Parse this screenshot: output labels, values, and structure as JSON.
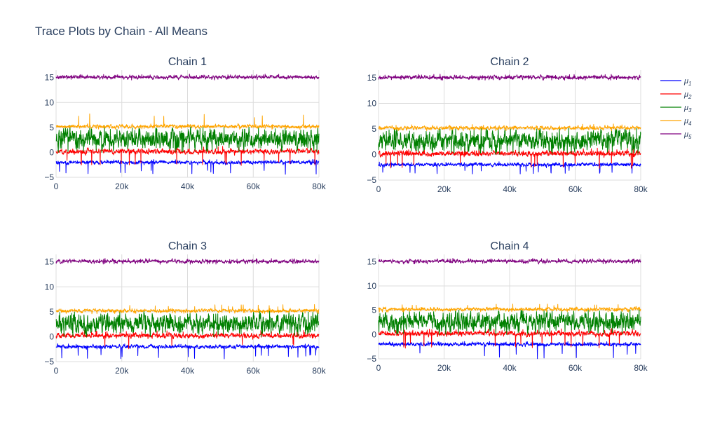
{
  "title": "Trace Plots by Chain - All Means",
  "colors": {
    "grid": "#dcdcdc",
    "text": "#2a3f5f"
  },
  "legend": {
    "placement": "top-right",
    "entries": [
      {
        "base": "μ",
        "sub": "1",
        "color": "#0000ff"
      },
      {
        "base": "μ",
        "sub": "2",
        "color": "#ff0000"
      },
      {
        "base": "μ",
        "sub": "3",
        "color": "#008000"
      },
      {
        "base": "μ",
        "sub": "4",
        "color": "#ffa500"
      },
      {
        "base": "μ",
        "sub": "5",
        "color": "#800080"
      }
    ]
  },
  "chart_data": [
    {
      "type": "line",
      "title": "Chain 1",
      "xlim": [
        0,
        80000
      ],
      "ylim": [
        -5,
        16.5
      ],
      "xticks": [
        0,
        20000,
        40000,
        60000,
        80000
      ],
      "xtick_labels": [
        "0",
        "20k",
        "40k",
        "60k",
        "80k"
      ],
      "yticks": [
        -5,
        0,
        5,
        10,
        15
      ],
      "ytick_labels": [
        "−5",
        "0",
        "5",
        "10",
        "15"
      ],
      "grid": true,
      "series": [
        {
          "name": "μ1",
          "color": "#0000ff",
          "mean": -2.0,
          "noise": 0.25,
          "min": -4.5,
          "max": -1.4
        },
        {
          "name": "μ2",
          "color": "#ff0000",
          "mean": 0.2,
          "noise": 0.35,
          "min": -2.8,
          "max": 1.3
        },
        {
          "name": "μ3",
          "color": "#008000",
          "mean": 2.7,
          "noise": 1.3,
          "min": 0.0,
          "max": 5.4
        },
        {
          "name": "μ4",
          "color": "#ffa500",
          "mean": 5.2,
          "noise": 0.25,
          "min": 4.6,
          "max": 7.8
        },
        {
          "name": "μ5",
          "color": "#800080",
          "mean": 15.1,
          "noise": 0.25,
          "min": 14.5,
          "max": 15.7
        }
      ]
    },
    {
      "type": "line",
      "title": "Chain 2",
      "xlim": [
        0,
        80000
      ],
      "ylim": [
        -5,
        16.5
      ],
      "xticks": [
        0,
        20000,
        40000,
        60000,
        80000
      ],
      "xtick_labels": [
        "0",
        "20k",
        "40k",
        "60k",
        "80k"
      ],
      "yticks": [
        -5,
        0,
        5,
        10,
        15
      ],
      "ytick_labels": [
        "−5",
        "0",
        "5",
        "10",
        "15"
      ],
      "grid": true,
      "series": [
        {
          "name": "μ1",
          "color": "#0000ff",
          "mean": -2.0,
          "noise": 0.25,
          "min": -3.8,
          "max": -1.4
        },
        {
          "name": "μ2",
          "color": "#ff0000",
          "mean": 0.2,
          "noise": 0.35,
          "min": -2.8,
          "max": 1.3
        },
        {
          "name": "μ3",
          "color": "#008000",
          "mean": 2.7,
          "noise": 1.3,
          "min": 0.0,
          "max": 5.2
        },
        {
          "name": "μ4",
          "color": "#ffa500",
          "mean": 5.2,
          "noise": 0.25,
          "min": 4.6,
          "max": 6.0
        },
        {
          "name": "μ5",
          "color": "#800080",
          "mean": 15.1,
          "noise": 0.25,
          "min": 14.5,
          "max": 15.7
        }
      ]
    },
    {
      "type": "line",
      "title": "Chain 3",
      "xlim": [
        0,
        80000
      ],
      "ylim": [
        -5,
        16.5
      ],
      "xticks": [
        0,
        20000,
        40000,
        60000,
        80000
      ],
      "xtick_labels": [
        "0",
        "20k",
        "40k",
        "60k",
        "80k"
      ],
      "yticks": [
        -5,
        0,
        5,
        10,
        15
      ],
      "ytick_labels": [
        "−5",
        "0",
        "5",
        "10",
        "15"
      ],
      "grid": true,
      "series": [
        {
          "name": "μ1",
          "color": "#0000ff",
          "mean": -2.0,
          "noise": 0.25,
          "min": -4.5,
          "max": -1.4
        },
        {
          "name": "μ2",
          "color": "#ff0000",
          "mean": 0.2,
          "noise": 0.35,
          "min": -2.6,
          "max": 1.3
        },
        {
          "name": "μ3",
          "color": "#008000",
          "mean": 2.7,
          "noise": 1.3,
          "min": 0.0,
          "max": 5.2
        },
        {
          "name": "μ4",
          "color": "#ffa500",
          "mean": 5.2,
          "noise": 0.25,
          "min": 4.6,
          "max": 6.5
        },
        {
          "name": "μ5",
          "color": "#800080",
          "mean": 15.1,
          "noise": 0.25,
          "min": 14.5,
          "max": 15.7
        }
      ]
    },
    {
      "type": "line",
      "title": "Chain 4",
      "xlim": [
        0,
        80000
      ],
      "ylim": [
        -5,
        16.5
      ],
      "xticks": [
        0,
        20000,
        40000,
        60000,
        80000
      ],
      "xtick_labels": [
        "0",
        "20k",
        "40k",
        "60k",
        "80k"
      ],
      "yticks": [
        -5,
        0,
        5,
        10,
        15
      ],
      "ytick_labels": [
        "−5",
        "0",
        "5",
        "10",
        "15"
      ],
      "grid": true,
      "series": [
        {
          "name": "μ1",
          "color": "#0000ff",
          "mean": -2.0,
          "noise": 0.25,
          "min": -5.0,
          "max": -1.4
        },
        {
          "name": "μ2",
          "color": "#ff0000",
          "mean": 0.2,
          "noise": 0.35,
          "min": -2.8,
          "max": 1.3
        },
        {
          "name": "μ3",
          "color": "#008000",
          "mean": 2.7,
          "noise": 1.3,
          "min": 0.0,
          "max": 5.2
        },
        {
          "name": "μ4",
          "color": "#ffa500",
          "mean": 5.2,
          "noise": 0.25,
          "min": 4.6,
          "max": 6.3
        },
        {
          "name": "μ5",
          "color": "#800080",
          "mean": 15.1,
          "noise": 0.25,
          "min": 14.5,
          "max": 15.7
        }
      ]
    }
  ]
}
